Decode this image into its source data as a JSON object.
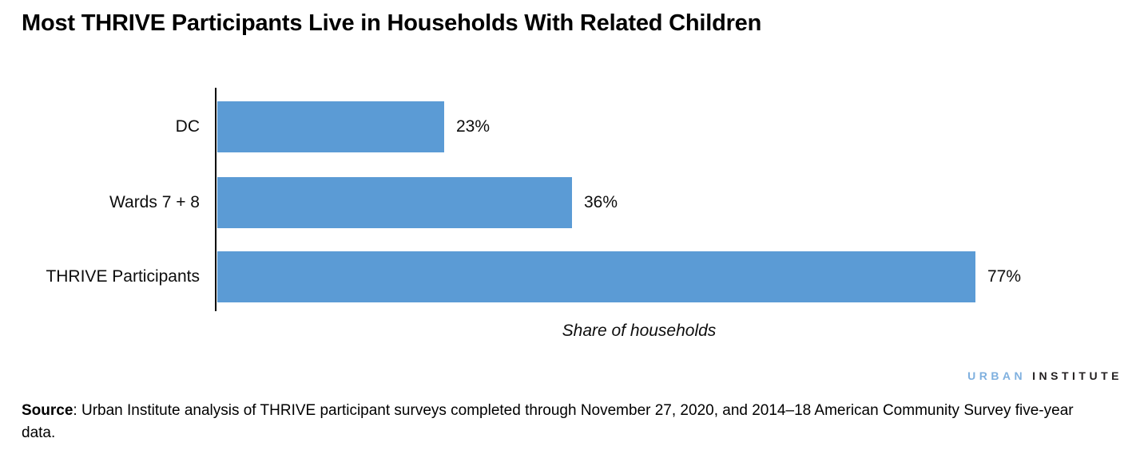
{
  "title": "Most THRIVE Participants Live in Households With Related Children",
  "chart_data": {
    "type": "bar",
    "orientation": "horizontal",
    "categories": [
      "DC",
      "Wards 7 + 8",
      "THRIVE Participants"
    ],
    "values": [
      23,
      36,
      77
    ],
    "value_labels": [
      "23%",
      "36%",
      "77%"
    ],
    "title": "Most THRIVE Participants Live in Households With Related Children",
    "xlabel": "Share of households",
    "ylabel": "",
    "xlim": [
      0,
      92
    ],
    "grid": false,
    "legend": false,
    "bar_color": "#5B9BD5",
    "axis_line_color": "#000000"
  },
  "logo": {
    "word1": "URBAN",
    "word2": "INSTITUTE",
    "word1_color": "#7FB0DF",
    "word2_color": "#231F20"
  },
  "source": {
    "label": "Source",
    "text": ": Urban Institute analysis of THRIVE participant surveys completed through November 27, 2020, and 2014–18 American Community Survey five-year data."
  }
}
